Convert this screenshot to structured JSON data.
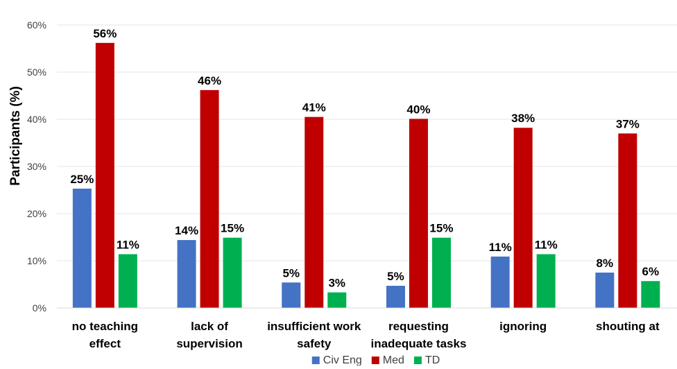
{
  "chart_data": {
    "type": "bar",
    "title": "",
    "xlabel": "",
    "ylabel": "Participants (%)",
    "ylim": [
      0,
      60
    ],
    "ytick_step": 10,
    "ytick_suffix": "%",
    "grid": true,
    "legend_position": "bottom",
    "categories": [
      [
        "no teaching",
        "effect"
      ],
      [
        "lack of",
        "supervision"
      ],
      [
        "insufficient work",
        "safety"
      ],
      [
        "requesting",
        "inadequate tasks"
      ],
      [
        "ignoring"
      ],
      [
        "shouting at"
      ]
    ],
    "series": [
      {
        "name": "Civ Eng",
        "color": "#4472C4",
        "values": [
          25.3,
          14.4,
          5.4,
          4.7,
          10.9,
          7.5
        ],
        "labels": [
          "25%",
          "14%",
          "5%",
          "5%",
          "11%",
          "8%"
        ]
      },
      {
        "name": "Med",
        "color": "#C00000",
        "values": [
          56.2,
          46.2,
          40.5,
          40.1,
          38.2,
          37.0
        ],
        "labels": [
          "56%",
          "46%",
          "41%",
          "40%",
          "38%",
          "37%"
        ]
      },
      {
        "name": "TD",
        "color": "#00B050",
        "values": [
          11.4,
          14.9,
          3.3,
          14.9,
          11.4,
          5.7
        ],
        "labels": [
          "11%",
          "15%",
          "3%",
          "15%",
          "11%",
          "6%"
        ]
      }
    ]
  }
}
